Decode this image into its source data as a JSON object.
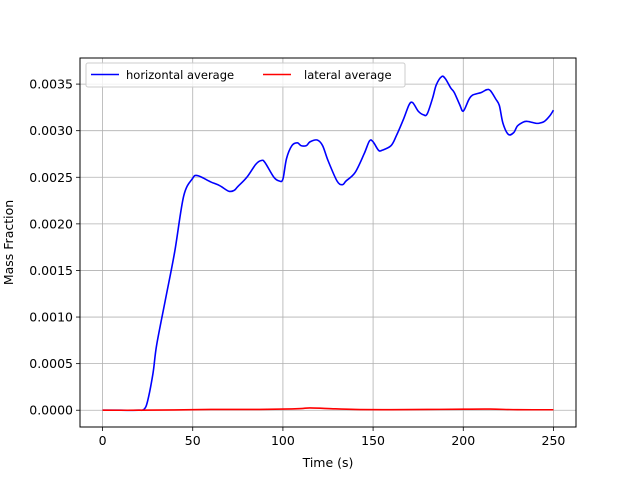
{
  "chart_data": {
    "type": "line",
    "xlabel": "Time (s)",
    "ylabel": "Mass Fraction",
    "xlim": [
      -12.5,
      262.5
    ],
    "ylim": [
      -0.00018,
      0.00378
    ],
    "xticks": [
      0,
      50,
      100,
      150,
      200,
      250
    ],
    "xtick_labels": [
      "0",
      "50",
      "100",
      "150",
      "200",
      "250"
    ],
    "yticks": [
      0,
      0.0005,
      0.001,
      0.0015,
      0.002,
      0.0025,
      0.003,
      0.0035
    ],
    "ytick_labels": [
      "0.0000",
      "0.0005",
      "0.0010",
      "0.0015",
      "0.0020",
      "0.0025",
      "0.0030",
      "0.0035"
    ],
    "grid": true,
    "legend_position": "top-left",
    "series": [
      {
        "name": "horizontal average",
        "color": "#0000ff",
        "x": [
          0,
          10,
          20,
          23,
          25,
          28,
          30,
          35,
          40,
          45,
          50,
          52,
          55,
          60,
          65,
          70,
          73,
          75,
          80,
          85,
          88,
          90,
          95,
          98,
          100,
          102,
          105,
          108,
          110,
          113,
          115,
          119,
          122,
          125,
          130,
          133,
          135,
          140,
          145,
          148,
          150,
          153,
          155,
          160,
          163,
          167,
          170,
          172,
          175,
          178,
          180,
          183,
          185,
          188,
          190,
          193,
          195,
          198,
          200,
          203,
          205,
          210,
          213,
          215,
          218,
          220,
          222,
          225,
          228,
          230,
          233,
          235,
          238,
          240,
          242,
          245,
          248,
          250
        ],
        "y": [
          0.0,
          0.0,
          0.0,
          1e-05,
          0.0001,
          0.0004,
          0.0007,
          0.0012,
          0.0017,
          0.0023,
          0.00249,
          0.00252,
          0.0025,
          0.00245,
          0.00241,
          0.00235,
          0.00236,
          0.0024,
          0.0025,
          0.00264,
          0.00268,
          0.00266,
          0.0025,
          0.00246,
          0.00248,
          0.0027,
          0.00284,
          0.00287,
          0.00284,
          0.00284,
          0.00288,
          0.0029,
          0.00284,
          0.00268,
          0.00246,
          0.00242,
          0.00246,
          0.00255,
          0.00275,
          0.00289,
          0.00288,
          0.00279,
          0.00279,
          0.00284,
          0.00295,
          0.00313,
          0.00328,
          0.0033,
          0.00321,
          0.00317,
          0.00318,
          0.00335,
          0.00349,
          0.00358,
          0.00356,
          0.00346,
          0.00341,
          0.00328,
          0.00321,
          0.00333,
          0.00338,
          0.00341,
          0.00344,
          0.00343,
          0.00334,
          0.00327,
          0.00308,
          0.00296,
          0.00298,
          0.00305,
          0.00309,
          0.0031,
          0.00309,
          0.00308,
          0.00308,
          0.0031,
          0.00316,
          0.00322
        ]
      },
      {
        "name": "lateral average",
        "color": "#ff0000",
        "x": [
          0,
          20,
          40,
          60,
          80,
          100,
          110,
          115,
          125,
          140,
          160,
          180,
          200,
          215,
          230,
          250
        ],
        "y": [
          0.0,
          0.0,
          3e-06,
          8e-06,
          8e-06,
          1.2e-05,
          1.8e-05,
          2.5e-05,
          1.8e-05,
          8e-06,
          6e-06,
          8e-06,
          1.1e-05,
          1.2e-05,
          6e-06,
          5e-06
        ]
      }
    ]
  }
}
